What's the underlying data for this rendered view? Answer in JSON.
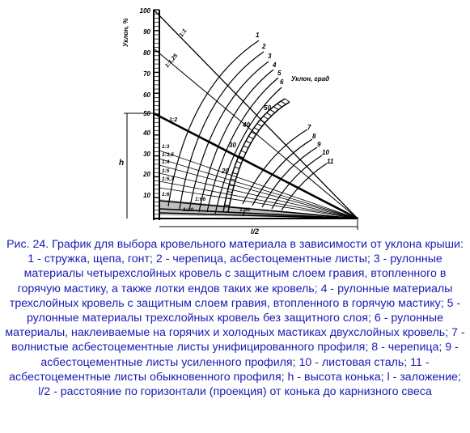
{
  "diagram": {
    "axis_title": "Уклон, %",
    "axis_ticks": [
      "100",
      "90",
      "80",
      "70",
      "60",
      "50",
      "40",
      "30",
      "20",
      "10"
    ],
    "arc_title": "Уклон, град",
    "arc_ticks": [
      "50",
      "40",
      "30",
      "20"
    ],
    "curve_numbers": [
      "1",
      "2",
      "3",
      "4",
      "5",
      "6",
      "7",
      "8",
      "9",
      "10",
      "11"
    ],
    "ratios": [
      "1:1",
      "1:1,25",
      "1:2",
      "1:3",
      "1:3,5",
      "1:4",
      "1:5",
      "1:5,7",
      "1:6",
      "1:66",
      "1:20",
      "1:40"
    ],
    "h_label": "h",
    "l_half_label": "l/2",
    "l_label": "l"
  },
  "caption": {
    "title": "Рис. 24. График для выбора кровельного материала в зависимости от уклона крыши:",
    "body": "1 - стружка, щепа, гонт; 2 - черепица, асбестоцементные листы; 3 - рулонные материалы четырехслойных кровель с защитным слоем гравия, втопленного в горячую мастику, а также лотки ендов таких же кровель; 4 - рулонные материалы трехслойных кровель с защитным слоем гравия, втопленного в горячую мастику; 5 - рулонные материалы трехслойных кровель без защитного слоя; 6 - рулонные материалы, наклеиваемые на горячих и холодных мастиках двухслойных кровель; 7 - волнистые асбестоцементные листы унифицированного профиля; 8 - черепица; 9 - асбестоцементные листы усиленного профиля; 10 - листовая сталь; 11 - асбестоцементные листы обыкновенного профиля; h - высота конька; l - заложение; l/2 - расстояние по горизонтали (проекция) от конька до карнизного свеса"
  }
}
